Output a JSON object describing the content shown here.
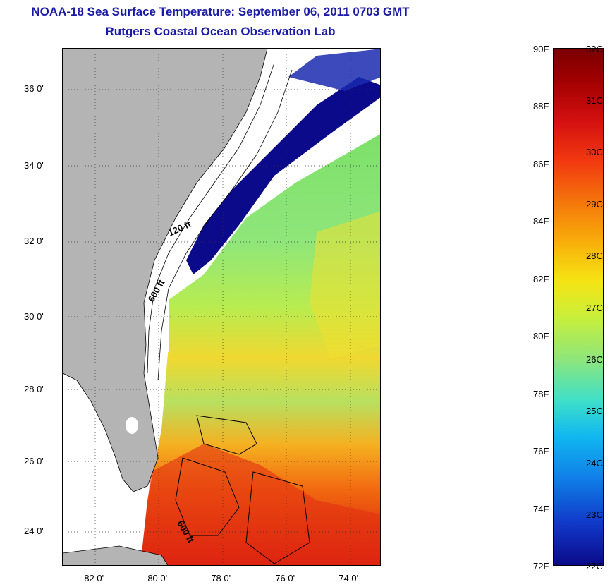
{
  "title": {
    "line1": "NOAA-18 Sea Surface Temperature:  September 06, 2011 0703 GMT",
    "line2": "Rutgers Coastal Ocean Observation Lab"
  },
  "map": {
    "lat_labels": [
      "36 0'",
      "34 0'",
      "32 0'",
      "30 0'",
      "28 0'",
      "26 0'",
      "24 0'"
    ],
    "lon_labels": [
      "-82 0'",
      "-80 0'",
      "-78 0'",
      "-76 0'",
      "-74 0'"
    ],
    "contour_labels": [
      "120 ft",
      "600 ft",
      "600 ft"
    ]
  },
  "colorbar": {
    "fahrenheit_labels": [
      "90F",
      "88F",
      "86F",
      "84F",
      "82F",
      "80F",
      "78F",
      "76F",
      "74F",
      "72F"
    ],
    "celsius_labels": [
      "32C",
      "31C",
      "30C",
      "29C",
      "28C",
      "27C",
      "26C",
      "25C",
      "24C",
      "23C",
      "22C"
    ],
    "min_celsius": 22,
    "max_celsius": 32
  },
  "colors": {
    "title": "#1a1aa6",
    "land": "#b4b4b4",
    "cloud_mask": "#ffffff",
    "cold": "#0a0a8a",
    "warm": "#d41010"
  }
}
